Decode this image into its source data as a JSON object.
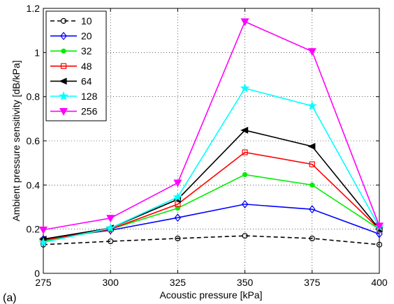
{
  "panel_label": "(a)",
  "chart_data": {
    "type": "line",
    "title": "",
    "xlabel": "Acoustic pressure [kPa]",
    "ylabel": "Ambient pressure sensitivity [dB/kPa]",
    "x": [
      275,
      300,
      325,
      350,
      375,
      400
    ],
    "xlim": [
      275,
      400
    ],
    "ylim": [
      0,
      1.2
    ],
    "xticks": [
      "275",
      "300",
      "325",
      "350",
      "375",
      "400"
    ],
    "yticks": [
      "0",
      "0.2",
      "0.4",
      "0.6",
      "0.8",
      "1",
      "1.2"
    ],
    "grid": true,
    "legend_position": "top-left",
    "series": [
      {
        "name": "10",
        "color": "#000000",
        "dash": true,
        "marker": "circle",
        "values": [
          0.13,
          0.145,
          0.158,
          0.17,
          0.158,
          0.13
        ]
      },
      {
        "name": "20",
        "color": "#0000ff",
        "dash": false,
        "marker": "diamond",
        "values": [
          0.155,
          0.195,
          0.252,
          0.313,
          0.29,
          0.178
        ]
      },
      {
        "name": "32",
        "color": "#00ee00",
        "dash": false,
        "marker": "circle-filled",
        "values": [
          0.145,
          0.2,
          0.295,
          0.447,
          0.4,
          0.2
        ]
      },
      {
        "name": "48",
        "color": "#ff0000",
        "dash": false,
        "marker": "square",
        "values": [
          0.15,
          0.2,
          0.313,
          0.548,
          0.494,
          0.2
        ]
      },
      {
        "name": "64",
        "color": "#000000",
        "dash": false,
        "marker": "triangle-left",
        "values": [
          0.155,
          0.205,
          0.335,
          0.648,
          0.575,
          0.2
        ]
      },
      {
        "name": "128",
        "color": "#00ffff",
        "dash": false,
        "marker": "star",
        "values": [
          0.14,
          0.205,
          0.345,
          0.838,
          0.758,
          0.21
        ]
      },
      {
        "name": "256",
        "color": "#ff00ff",
        "dash": false,
        "marker": "triangle-down",
        "values": [
          0.197,
          0.25,
          0.41,
          1.14,
          1.005,
          0.215
        ]
      }
    ]
  }
}
